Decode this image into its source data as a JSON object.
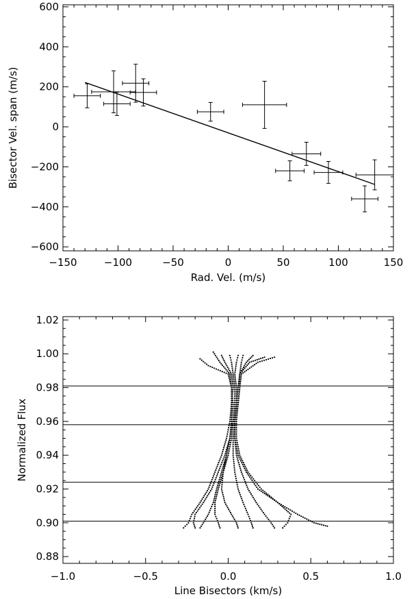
{
  "chart_data": [
    {
      "type": "scatter",
      "xlabel": "Rad. Vel. (m/s)",
      "ylabel": "Bisector Vel. span (m/s)",
      "xlim": [
        -150,
        150
      ],
      "ylim": [
        -620,
        610
      ],
      "x_ticks": [
        -150,
        -100,
        -50,
        0,
        50,
        100,
        150
      ],
      "x_tick_labels": [
        "−150",
        "−100",
        "−50",
        "0",
        "50",
        "100",
        "150"
      ],
      "y_ticks": [
        -600,
        -400,
        -200,
        0,
        200,
        400,
        600
      ],
      "y_tick_labels": [
        "−600",
        "−400",
        "−200",
        "0",
        "200",
        "400",
        "600"
      ],
      "grid": false,
      "points": [
        {
          "x": -128,
          "y": 155,
          "xerr": 12,
          "yerr": 60
        },
        {
          "x": -104,
          "y": 175,
          "xerr": 20,
          "yerr": 105
        },
        {
          "x": -101,
          "y": 115,
          "xerr": 12,
          "yerr": 58
        },
        {
          "x": -84,
          "y": 218,
          "xerr": 12,
          "yerr": 95
        },
        {
          "x": -77,
          "y": 172,
          "xerr": 12,
          "yerr": 68
        },
        {
          "x": -16,
          "y": 75,
          "xerr": 12,
          "yerr": 47
        },
        {
          "x": 33,
          "y": 110,
          "xerr": 20,
          "yerr": 118
        },
        {
          "x": 56,
          "y": -220,
          "xerr": 13,
          "yerr": 50
        },
        {
          "x": 71,
          "y": -135,
          "xerr": 13,
          "yerr": 58
        },
        {
          "x": 91,
          "y": -228,
          "xerr": 13,
          "yerr": 55
        },
        {
          "x": 124,
          "y": -360,
          "xerr": 12,
          "yerr": 65
        },
        {
          "x": 133,
          "y": -240,
          "xerr": 17,
          "yerr": 75
        }
      ],
      "fit_line": {
        "x": [
          -130,
          133
        ],
        "y": [
          222,
          -288
        ]
      }
    },
    {
      "type": "line",
      "xlabel": "Line Bisectors (km/s)",
      "ylabel": "Normalized Flux",
      "xlim": [
        -1.0,
        1.0
      ],
      "ylim": [
        0.876,
        1.022
      ],
      "x_ticks": [
        -1.0,
        -0.5,
        0.0,
        0.5,
        1.0
      ],
      "x_tick_labels": [
        "−1.0",
        "−0.5",
        "0.0",
        "0.5",
        "1.0"
      ],
      "y_ticks": [
        0.88,
        0.9,
        0.92,
        0.94,
        0.96,
        0.98,
        1.0,
        1.02
      ],
      "y_tick_labels": [
        "0.88",
        "0.90",
        "0.92",
        "0.94",
        "0.96",
        "0.98",
        "1.00",
        "1.02"
      ],
      "grid": false,
      "reference_lines_y": [
        0.981,
        0.958,
        0.924,
        0.901
      ],
      "series": [
        {
          "flux": [
            0.897,
            0.9,
            0.905,
            0.912,
            0.92,
            0.93,
            0.94,
            0.95,
            0.96,
            0.97,
            0.98,
            0.988,
            0.995,
            1.001
          ],
          "bisector": [
            -0.27,
            -0.24,
            -0.22,
            -0.17,
            -0.12,
            -0.08,
            -0.04,
            -0.01,
            0.01,
            0.02,
            0.02,
            0.01,
            -0.05,
            -0.09
          ]
        },
        {
          "flux": [
            0.897,
            0.9,
            0.905,
            0.912,
            0.92,
            0.93,
            0.94,
            0.95,
            0.96,
            0.97,
            0.98,
            0.988,
            0.993,
            0.997
          ],
          "bisector": [
            -0.2,
            -0.21,
            -0.2,
            -0.15,
            -0.1,
            -0.06,
            -0.02,
            0.01,
            0.02,
            0.03,
            0.02,
            0.0,
            -0.12,
            -0.17
          ]
        },
        {
          "flux": [
            0.897,
            0.9,
            0.905,
            0.912,
            0.92,
            0.93,
            0.94,
            0.95,
            0.96,
            0.97,
            0.98,
            0.988,
            0.995,
            0.999
          ],
          "bisector": [
            -0.17,
            -0.15,
            -0.12,
            -0.09,
            -0.07,
            -0.04,
            -0.01,
            0.01,
            0.02,
            0.02,
            0.03,
            0.02,
            -0.02,
            -0.04
          ]
        },
        {
          "flux": [
            0.897,
            0.9,
            0.905,
            0.912,
            0.92,
            0.93,
            0.94,
            0.95,
            0.96,
            0.97,
            0.98,
            0.988,
            0.995,
            0.999
          ],
          "bisector": [
            -0.05,
            -0.06,
            -0.08,
            -0.08,
            -0.06,
            -0.03,
            0.0,
            0.02,
            0.03,
            0.04,
            0.04,
            0.03,
            0.02,
            0.01
          ]
        },
        {
          "flux": [
            0.897,
            0.9,
            0.905,
            0.912,
            0.92,
            0.93,
            0.94,
            0.95,
            0.96,
            0.97,
            0.98,
            0.988,
            0.995,
            0.999
          ],
          "bisector": [
            0.06,
            0.05,
            0.02,
            -0.02,
            -0.04,
            -0.03,
            -0.01,
            0.01,
            0.03,
            0.05,
            0.05,
            0.04,
            0.05,
            0.06
          ]
        },
        {
          "flux": [
            0.897,
            0.9,
            0.905,
            0.912,
            0.92,
            0.93,
            0.94,
            0.95,
            0.96,
            0.97,
            0.98,
            0.988,
            0.995,
            0.999
          ],
          "bisector": [
            0.15,
            0.14,
            0.12,
            0.09,
            0.06,
            0.04,
            0.03,
            0.03,
            0.04,
            0.05,
            0.06,
            0.07,
            0.08,
            0.09
          ]
        },
        {
          "flux": [
            0.897,
            0.9,
            0.905,
            0.912,
            0.92,
            0.93,
            0.94,
            0.95,
            0.96,
            0.97,
            0.98,
            0.988,
            0.995,
            0.999
          ],
          "bisector": [
            0.28,
            0.26,
            0.22,
            0.17,
            0.12,
            0.08,
            0.05,
            0.04,
            0.04,
            0.05,
            0.06,
            0.07,
            0.11,
            0.15
          ]
        },
        {
          "flux": [
            0.897,
            0.9,
            0.905,
            0.912,
            0.92,
            0.93,
            0.94,
            0.95,
            0.96,
            0.97,
            0.98,
            0.988,
            0.995,
            0.998
          ],
          "bisector": [
            0.33,
            0.36,
            0.38,
            0.3,
            0.2,
            0.12,
            0.07,
            0.05,
            0.05,
            0.06,
            0.07,
            0.07,
            0.13,
            0.22
          ]
        },
        {
          "flux": [
            0.898,
            0.9,
            0.905,
            0.912,
            0.92,
            0.93,
            0.94,
            0.95,
            0.96,
            0.97,
            0.98,
            0.988,
            0.995,
            0.998
          ],
          "bisector": [
            0.6,
            0.52,
            0.42,
            0.3,
            0.18,
            0.11,
            0.06,
            0.04,
            0.04,
            0.06,
            0.07,
            0.08,
            0.18,
            0.28
          ]
        }
      ]
    }
  ]
}
